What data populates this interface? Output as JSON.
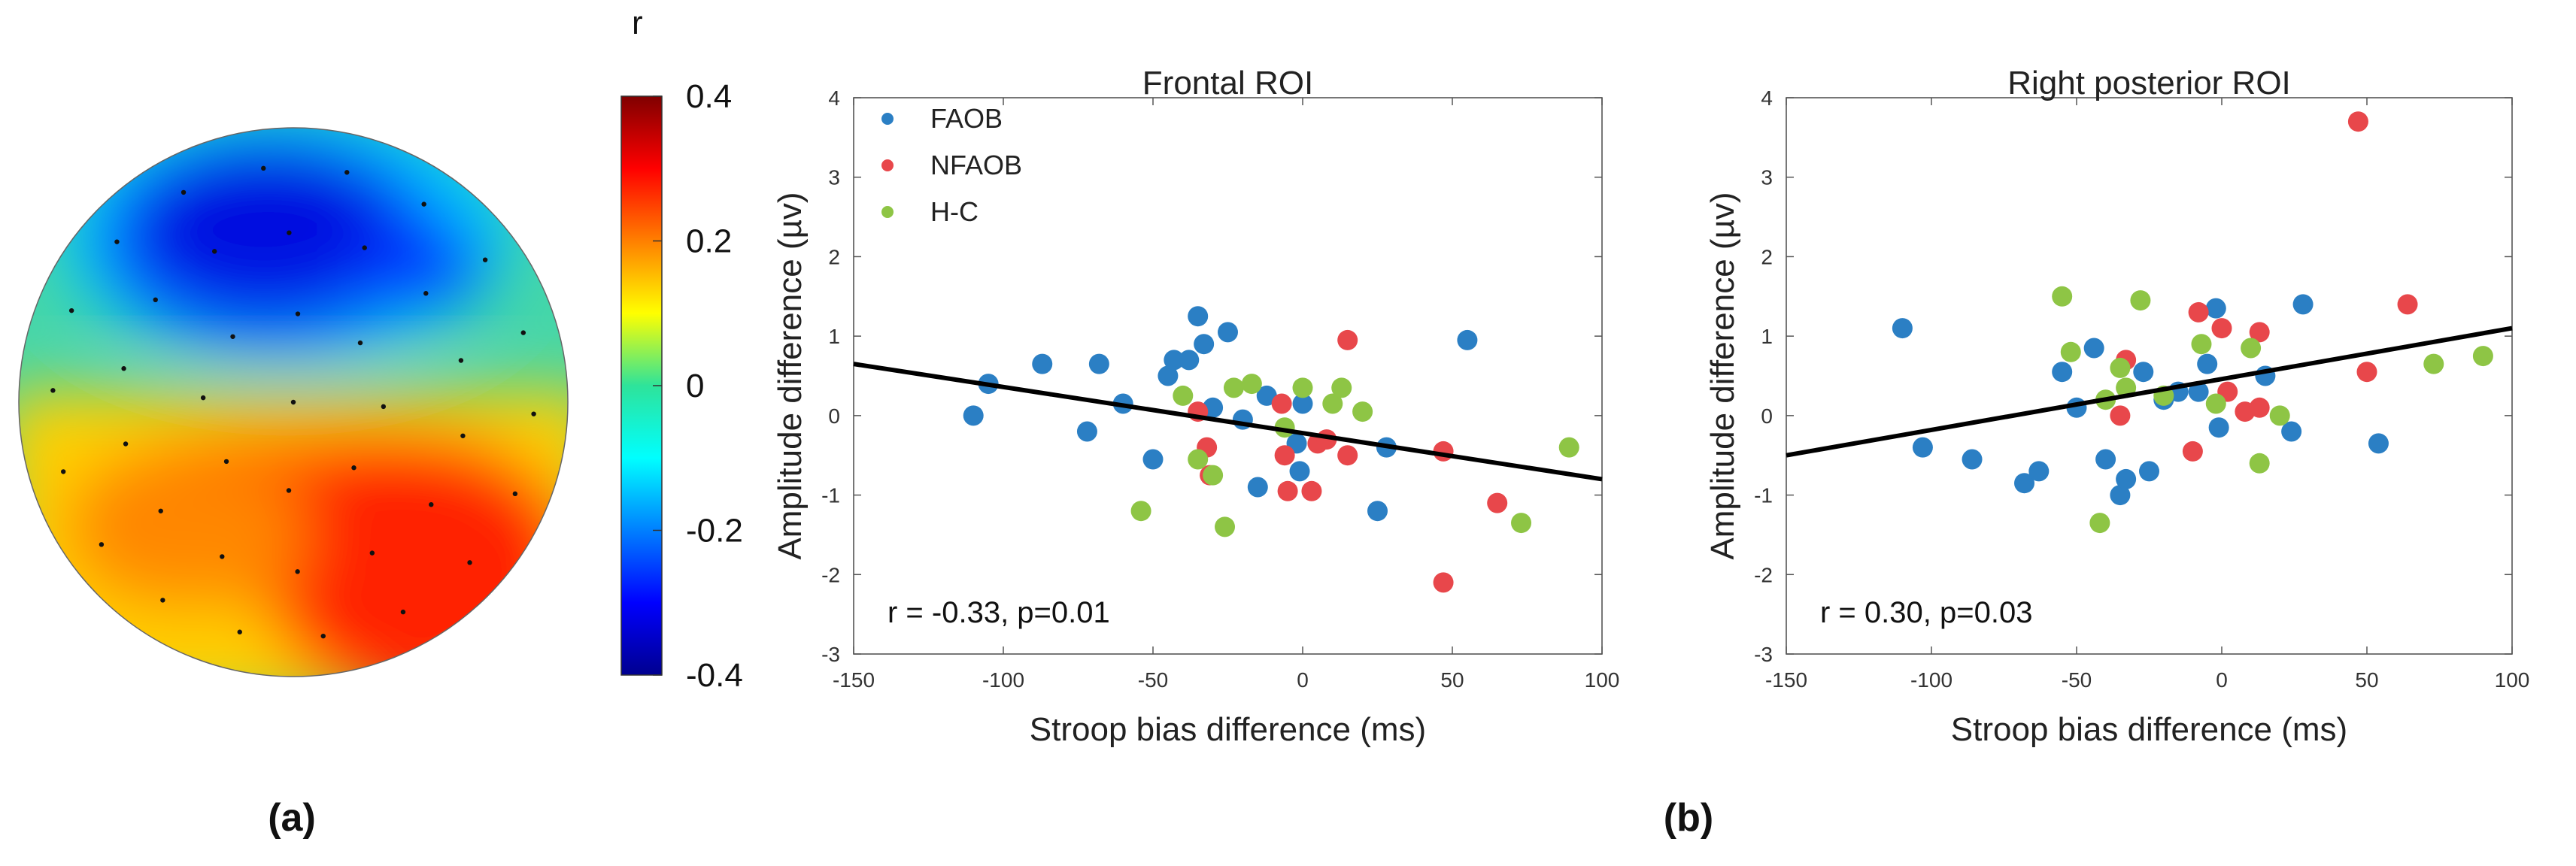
{
  "colors": {
    "FAOB": "#2b7fc4",
    "NFAOB": "#e8474b",
    "H-C": "#8ec545",
    "fit": "#000000"
  },
  "topomap": {
    "colorbar_title": "r",
    "colorbar_ticks": [
      "0.4",
      "0.2",
      "0",
      "-0.2",
      "-0.4"
    ],
    "colorbar_range": [
      -0.4,
      0.4
    ],
    "panel_label": "(a)"
  },
  "panel_label_b": "(b)",
  "chart_data": [
    {
      "type": "scatter",
      "title": "Frontal ROI",
      "xlabel": "Stroop bias difference (ms)",
      "ylabel": "Amplitude difference (µv)",
      "xlim": [
        -150,
        100
      ],
      "ylim": [
        -3,
        4
      ],
      "xticks": [
        "-150",
        "-100",
        "-50",
        "0",
        "50",
        "100"
      ],
      "yticks": [
        "-3",
        "-2",
        "-1",
        "0",
        "1",
        "2",
        "3",
        "4"
      ],
      "legend_position": "top-left",
      "annotation": "r = -0.33, p=0.01",
      "fit_line": {
        "x": [
          -150,
          100
        ],
        "y": [
          0.65,
          -0.8
        ]
      },
      "series": [
        {
          "name": "FAOB",
          "points": [
            [
              -110,
              0.0
            ],
            [
              -105,
              0.4
            ],
            [
              -87,
              0.65
            ],
            [
              -68,
              0.65
            ],
            [
              -72,
              -0.2
            ],
            [
              -60,
              0.15
            ],
            [
              -50,
              -0.55
            ],
            [
              -45,
              0.5
            ],
            [
              -43,
              0.7
            ],
            [
              -38,
              0.7
            ],
            [
              -35,
              1.25
            ],
            [
              -33,
              0.9
            ],
            [
              -30,
              0.1
            ],
            [
              -25,
              1.05
            ],
            [
              -20,
              -0.05
            ],
            [
              -15,
              -0.9
            ],
            [
              -12,
              0.25
            ],
            [
              -2,
              -0.35
            ],
            [
              0,
              0.15
            ],
            [
              -1,
              -0.7
            ],
            [
              25,
              -1.2
            ],
            [
              28,
              -0.4
            ],
            [
              55,
              0.95
            ]
          ]
        },
        {
          "name": "NFAOB",
          "points": [
            [
              -35,
              0.05
            ],
            [
              -32,
              -0.4
            ],
            [
              -31,
              -0.75
            ],
            [
              -7,
              0.15
            ],
            [
              -6,
              -0.5
            ],
            [
              -5,
              -0.95
            ],
            [
              3,
              -0.95
            ],
            [
              5,
              -0.35
            ],
            [
              8,
              -0.3
            ],
            [
              15,
              -0.5
            ],
            [
              15,
              0.95
            ],
            [
              47,
              -0.45
            ],
            [
              47,
              -2.1
            ],
            [
              65,
              -1.1
            ]
          ]
        },
        {
          "name": "H-C",
          "points": [
            [
              -54,
              -1.2
            ],
            [
              -40,
              0.25
            ],
            [
              -35,
              -0.55
            ],
            [
              -30,
              -0.75
            ],
            [
              -26,
              -1.4
            ],
            [
              -23,
              0.35
            ],
            [
              -17,
              0.4
            ],
            [
              -6,
              -0.15
            ],
            [
              0,
              0.35
            ],
            [
              10,
              0.15
            ],
            [
              13,
              0.35
            ],
            [
              20,
              0.05
            ],
            [
              73,
              -1.35
            ],
            [
              89,
              -0.4
            ]
          ]
        }
      ]
    },
    {
      "type": "scatter",
      "title": "Right posterior ROI",
      "xlabel": "Stroop bias difference (ms)",
      "ylabel": "Amplitude difference (µv)",
      "xlim": [
        -150,
        100
      ],
      "ylim": [
        -3,
        4
      ],
      "xticks": [
        "-150",
        "-100",
        "-50",
        "0",
        "50",
        "100"
      ],
      "yticks": [
        "-3",
        "-2",
        "-1",
        "0",
        "1",
        "2",
        "3",
        "4"
      ],
      "annotation": "r = 0.30, p=0.03",
      "fit_line": {
        "x": [
          -150,
          100
        ],
        "y": [
          -0.5,
          1.1
        ]
      },
      "series": [
        {
          "name": "FAOB",
          "points": [
            [
              -110,
              1.1
            ],
            [
              -103,
              -0.4
            ],
            [
              -86,
              -0.55
            ],
            [
              -68,
              -0.85
            ],
            [
              -63,
              -0.7
            ],
            [
              -55,
              0.55
            ],
            [
              -50,
              0.1
            ],
            [
              -44,
              0.85
            ],
            [
              -40,
              -0.55
            ],
            [
              -35,
              -1.0
            ],
            [
              -33,
              -0.8
            ],
            [
              -27,
              0.55
            ],
            [
              -25,
              -0.7
            ],
            [
              -20,
              0.2
            ],
            [
              -15,
              0.3
            ],
            [
              -8,
              0.3
            ],
            [
              -5,
              0.65
            ],
            [
              -2,
              1.35
            ],
            [
              -1,
              -0.15
            ],
            [
              15,
              0.5
            ],
            [
              24,
              -0.2
            ],
            [
              28,
              1.4
            ],
            [
              54,
              -0.35
            ]
          ]
        },
        {
          "name": "NFAOB",
          "points": [
            [
              -35,
              0.0
            ],
            [
              -33,
              0.7
            ],
            [
              -10,
              -0.45
            ],
            [
              -8,
              1.3
            ],
            [
              0,
              1.1
            ],
            [
              2,
              0.3
            ],
            [
              8,
              0.05
            ],
            [
              13,
              0.1
            ],
            [
              13,
              1.05
            ],
            [
              47,
              3.7
            ],
            [
              50,
              0.55
            ],
            [
              64,
              1.4
            ]
          ]
        },
        {
          "name": "H-C",
          "points": [
            [
              -55,
              1.5
            ],
            [
              -52,
              0.8
            ],
            [
              -42,
              -1.35
            ],
            [
              -40,
              0.2
            ],
            [
              -35,
              0.6
            ],
            [
              -33,
              0.35
            ],
            [
              -28,
              1.45
            ],
            [
              -20,
              0.25
            ],
            [
              -7,
              0.9
            ],
            [
              -2,
              0.15
            ],
            [
              10,
              0.85
            ],
            [
              13,
              -0.6
            ],
            [
              20,
              0.0
            ],
            [
              73,
              0.65
            ],
            [
              90,
              0.75
            ]
          ]
        }
      ]
    }
  ]
}
